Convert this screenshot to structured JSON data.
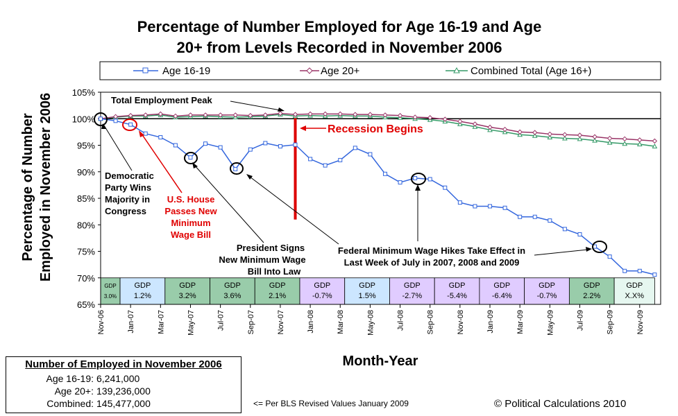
{
  "chart_data": {
    "type": "line",
    "title_line1": "Percentage of Number Employed for Age 16-19 and Age",
    "title_line2": "20+ from Levels Recorded in November 2006",
    "ylabel_line1": "Percentage of Number",
    "ylabel_line2": "Employed in November 2006",
    "xlabel": "Month-Year",
    "ylim": [
      65,
      105
    ],
    "yticks": [
      "65%",
      "70%",
      "75%",
      "80%",
      "85%",
      "90%",
      "95%",
      "100%",
      "105%"
    ],
    "x": [
      "Nov-06",
      "Dec-06",
      "Jan-07",
      "Feb-07",
      "Mar-07",
      "Apr-07",
      "May-07",
      "Jun-07",
      "Jul-07",
      "Aug-07",
      "Sep-07",
      "Oct-07",
      "Nov-07",
      "Dec-07",
      "Jan-08",
      "Feb-08",
      "Mar-08",
      "Apr-08",
      "May-08",
      "Jun-08",
      "Jul-08",
      "Aug-08",
      "Sep-08",
      "Oct-08",
      "Nov-08",
      "Dec-08",
      "Jan-09",
      "Feb-09",
      "Mar-09",
      "Apr-09",
      "May-09",
      "Jun-09",
      "Jul-09",
      "Aug-09",
      "Sep-09",
      "Oct-09",
      "Nov-09",
      "Dec-09"
    ],
    "xtick_labels": [
      "Nov-06",
      "Jan-07",
      "Mar-07",
      "May-07",
      "Jul-07",
      "Sep-07",
      "Nov-07",
      "Jan-08",
      "Mar-08",
      "May-08",
      "Jul-08",
      "Sep-08",
      "Nov-08",
      "Jan-09",
      "Mar-09",
      "May-09",
      "Jul-09",
      "Sep-09",
      "Nov-09"
    ],
    "series": [
      {
        "name": "Age 16-19",
        "color": "#3366dd",
        "marker": "square",
        "values": [
          100.0,
          99.6,
          98.9,
          97.2,
          96.5,
          95.0,
          92.7,
          95.3,
          94.6,
          90.5,
          94.2,
          95.4,
          94.8,
          95.1,
          92.4,
          91.2,
          92.2,
          94.5,
          93.3,
          89.6,
          88.0,
          88.8,
          88.6,
          87.0,
          84.2,
          83.5,
          83.5,
          83.2,
          81.5,
          81.5,
          80.8,
          79.2,
          78.2,
          75.9,
          74.0,
          71.3,
          71.3,
          70.6
        ]
      },
      {
        "name": "Age 20+",
        "color": "#993366",
        "marker": "diamond",
        "values": [
          100.0,
          100.4,
          100.6,
          100.7,
          100.9,
          100.5,
          100.7,
          100.7,
          100.7,
          100.7,
          100.6,
          100.7,
          101.0,
          100.8,
          100.9,
          100.9,
          100.9,
          100.8,
          100.8,
          100.7,
          100.6,
          100.3,
          100.2,
          99.9,
          99.5,
          99.0,
          98.4,
          98.0,
          97.5,
          97.4,
          97.1,
          97.0,
          96.9,
          96.6,
          96.3,
          96.2,
          96.0,
          95.8
        ]
      },
      {
        "name": "Combined Total (Age 16+)",
        "color": "#339966",
        "marker": "triangle",
        "values": [
          100.0,
          100.3,
          100.5,
          100.5,
          100.7,
          100.3,
          100.4,
          100.5,
          100.4,
          100.3,
          100.4,
          100.5,
          100.8,
          100.5,
          100.6,
          100.5,
          100.6,
          100.5,
          100.5,
          100.3,
          100.2,
          100.0,
          99.8,
          99.5,
          99.0,
          98.5,
          97.9,
          97.5,
          97.0,
          96.8,
          96.5,
          96.3,
          96.2,
          95.9,
          95.5,
          95.3,
          95.2,
          94.8
        ]
      }
    ],
    "reference_line": {
      "value": 100,
      "color": "#000000"
    },
    "recession_line": {
      "at": "Dec-07",
      "color": "#dd0000"
    },
    "gdp_bands": [
      {
        "label": "GDP",
        "value": "3.0%",
        "months": 1.3,
        "color": "#99ccaa",
        "small": true
      },
      {
        "label": "GDP",
        "value": "1.2%",
        "months": 3,
        "color": "#cce6ff"
      },
      {
        "label": "GDP",
        "value": "3.2%",
        "months": 3,
        "color": "#99ccaa"
      },
      {
        "label": "GDP",
        "value": "3.6%",
        "months": 3,
        "color": "#99ccaa"
      },
      {
        "label": "GDP",
        "value": "2.1%",
        "months": 3,
        "color": "#99ccaa"
      },
      {
        "label": "GDP",
        "value": "-0.7%",
        "months": 3,
        "color": "#e0ccff"
      },
      {
        "label": "GDP",
        "value": "1.5%",
        "months": 3,
        "color": "#cce6ff"
      },
      {
        "label": "GDP",
        "value": "-2.7%",
        "months": 3,
        "color": "#e0ccff"
      },
      {
        "label": "GDP",
        "value": "-5.4%",
        "months": 3,
        "color": "#e0ccff"
      },
      {
        "label": "GDP",
        "value": "-6.4%",
        "months": 3,
        "color": "#e0ccff"
      },
      {
        "label": "GDP",
        "value": "-0.7%",
        "months": 3,
        "color": "#e0ccff"
      },
      {
        "label": "GDP",
        "value": "2.2%",
        "months": 3,
        "color": "#99ccaa"
      },
      {
        "label": "GDP",
        "value": "X.X%",
        "months": 2.7,
        "color": "#e6f7f0"
      }
    ],
    "annotations": {
      "peak": "Total Employment Peak",
      "recession": "Recession Begins",
      "democratic": [
        "Democratic",
        "Party Wins",
        "Majority in",
        "Congress"
      ],
      "house": [
        "U.S. House",
        "Passes New",
        "Minimum",
        "Wage Bill"
      ],
      "president": [
        "President Signs",
        "New Minimum Wage",
        "Bill Into Law"
      ],
      "federal": [
        "Federal Minimum Wage Hikes Take Effect in",
        "Last Week of July in 2007, 2008 and 2009"
      ]
    },
    "legend_position": "top"
  },
  "info_box": {
    "header": "Number of Employed in November 2006",
    "rows": [
      {
        "label": "Age 16-19:",
        "value": "6,241,000"
      },
      {
        "label": "Age 20+:",
        "value": "139,236,000"
      },
      {
        "label": "Combined:",
        "value": "145,477,000"
      }
    ]
  },
  "footnote": "<= Per BLS Revised Values January 2009",
  "copyright": "© Political Calculations 2010"
}
